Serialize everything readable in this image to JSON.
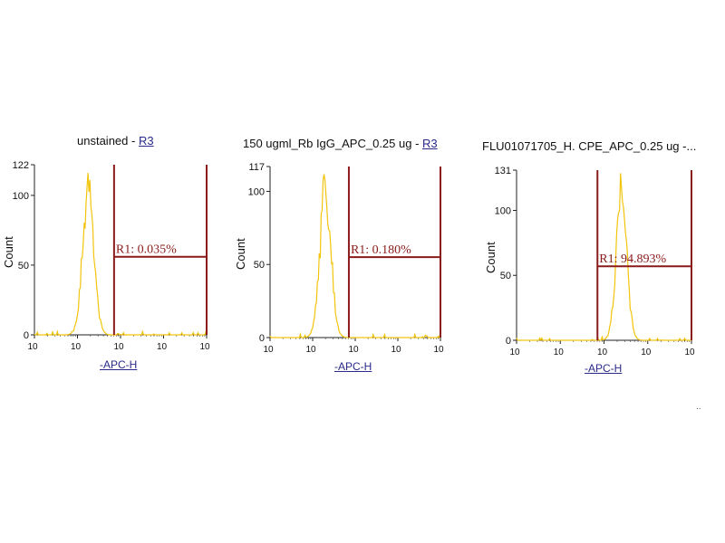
{
  "chart_data": [
    {
      "type": "histogram",
      "title": "unstained",
      "title_gate": "R3",
      "title_separator": " - ",
      "xlabel": "-APC-H",
      "ylabel": "Count",
      "y_max": 122,
      "y_ticks": [
        0,
        50,
        100,
        122
      ],
      "x_scale": "log",
      "xlim_log10": [
        0,
        4
      ],
      "x_tick_labels": [
        "10",
        "10",
        "10",
        "10",
        "10"
      ],
      "gate": {
        "name": "R1",
        "label": "R1: 0.035%",
        "percent": 0.035,
        "start_log10": 1.85,
        "end_log10": 4.0,
        "y_level": 56
      },
      "histogram_color": "#f2c40c",
      "gate_color": "#8b1a1a",
      "peak_log10": 1.25,
      "peak_sigma": 0.13,
      "peak_count": 122
    },
    {
      "type": "histogram",
      "title": "150 ugml_Rb IgG_APC_0.25 ug",
      "title_gate": "R3",
      "title_separator": " - ",
      "xlabel": "-APC-H",
      "ylabel": "Count",
      "y_max": 117,
      "y_ticks": [
        0,
        50,
        100,
        117
      ],
      "x_scale": "log",
      "xlim_log10": [
        0,
        4
      ],
      "x_tick_labels": [
        "10",
        "10",
        "10",
        "10",
        "10"
      ],
      "gate": {
        "name": "R1",
        "label": "R1: 0.180%",
        "percent": 0.18,
        "start_log10": 1.85,
        "end_log10": 4.0,
        "y_level": 55
      },
      "histogram_color": "#f2c40c",
      "gate_color": "#8b1a1a",
      "peak_log10": 1.3,
      "peak_sigma": 0.13,
      "peak_count": 117
    },
    {
      "type": "histogram",
      "title": "FLU01071705_H. CPE_APC_0.25 ug -...",
      "title_gate": "",
      "title_separator": "",
      "xlabel": "-APC-H",
      "ylabel": "Count",
      "y_max": 131,
      "y_ticks": [
        0,
        50,
        100,
        131
      ],
      "x_scale": "log",
      "xlim_log10": [
        0,
        4
      ],
      "x_tick_labels": [
        "10",
        "10",
        "10",
        "10",
        "10"
      ],
      "gate": {
        "name": "R1",
        "label": "R1: 94.893%",
        "percent": 94.893,
        "start_log10": 1.85,
        "end_log10": 4.0,
        "y_level": 57
      },
      "histogram_color": "#f2c40c",
      "gate_color": "#8b1a1a",
      "peak_log10": 2.4,
      "peak_sigma": 0.12,
      "peak_count": 131
    }
  ],
  "footer_mark": ".."
}
